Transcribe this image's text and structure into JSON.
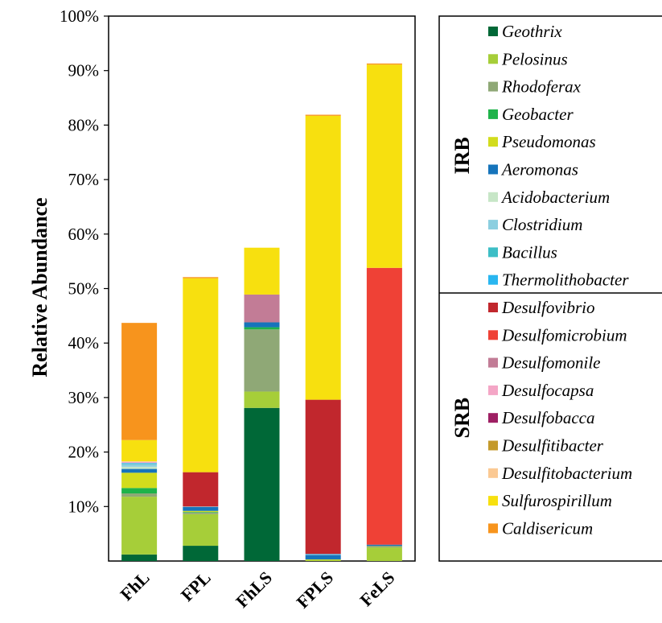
{
  "chart_data": {
    "type": "bar",
    "stacked": true,
    "ylabel": "Relative Abundance",
    "xlabel": "",
    "ylim": [
      0,
      100
    ],
    "yticks": [
      "10%",
      "20%",
      "30%",
      "40%",
      "50%",
      "60%",
      "70%",
      "80%",
      "90%",
      "100%"
    ],
    "categories": [
      "FhL",
      "FPL",
      "FhLS",
      "FPLS",
      "FeLS"
    ],
    "legend_position": "right",
    "legend_groups": [
      {
        "label": "IRB",
        "series": [
          "Geothrix",
          "Pelosinus",
          "Rhodoferax",
          "Geobacter",
          "Pseudomonas",
          "Aeromonas",
          "Acidobacterium",
          "Clostridium",
          "Bacillus",
          "Thermolithobacter"
        ]
      },
      {
        "label": "SRB",
        "series": [
          "Desulfovibrio",
          "Desulfomicrobium",
          "Desulfomonile",
          "Desulfocapsa",
          "Desulfobacca",
          "Desulfitibacter",
          "Desulfitobacterium",
          "Sulfurospirillum",
          "Caldisericum"
        ]
      }
    ],
    "series": [
      {
        "name": "Geothrix",
        "color": "#006837",
        "values": [
          1.2,
          2.8,
          28.1,
          0,
          0
        ]
      },
      {
        "name": "Pelosinus",
        "color": "#a6ce39",
        "values": [
          10.6,
          5.8,
          3.0,
          0.2,
          2.5
        ]
      },
      {
        "name": "Rhodoferax",
        "color": "#8fa876",
        "values": [
          0.6,
          0.3,
          11.4,
          0,
          0.3
        ]
      },
      {
        "name": "Geobacter",
        "color": "#1fb34a",
        "values": [
          1.0,
          0.1,
          0.4,
          0,
          0
        ]
      },
      {
        "name": "Pseudomonas",
        "color": "#d2dc1d",
        "values": [
          2.8,
          0.2,
          0,
          0.1,
          0
        ]
      },
      {
        "name": "Aeromonas",
        "color": "#1674bb",
        "values": [
          0.7,
          0.7,
          0.9,
          0.8,
          0.2
        ]
      },
      {
        "name": "Acidobacterium",
        "color": "#c7e6c7",
        "values": [
          0.4,
          0,
          0,
          0,
          0
        ]
      },
      {
        "name": "Clostridium",
        "color": "#8ccfe0",
        "values": [
          0.5,
          0.1,
          0,
          0.1,
          0
        ]
      },
      {
        "name": "Bacillus",
        "color": "#3cbec6",
        "values": [
          0.1,
          0,
          0,
          0,
          0
        ]
      },
      {
        "name": "Thermolithobacter",
        "color": "#29b6f0",
        "values": [
          0.1,
          0,
          0,
          0.1,
          0
        ]
      },
      {
        "name": "Desulfovibrio",
        "color": "#c1272d",
        "values": [
          0,
          6.3,
          0,
          28.3,
          0
        ]
      },
      {
        "name": "Desulfomicrobium",
        "color": "#ef4136",
        "values": [
          0,
          0,
          0,
          0,
          50.8
        ]
      },
      {
        "name": "Desulfomonile",
        "color": "#c27c96",
        "values": [
          0,
          0,
          5.1,
          0,
          0
        ]
      },
      {
        "name": "Desulfocapsa",
        "color": "#f4a6c6",
        "values": [
          0.2,
          0,
          0,
          0,
          0
        ]
      },
      {
        "name": "Desulfobacca",
        "color": "#9e1f63",
        "values": [
          0,
          0,
          0,
          0,
          0
        ]
      },
      {
        "name": "Desulfitibacter",
        "color": "#c49a2c",
        "values": [
          0,
          0,
          0,
          0,
          0
        ]
      },
      {
        "name": "Desulfitobacterium",
        "color": "#fbc993",
        "values": [
          0.1,
          0,
          0,
          0,
          0
        ]
      },
      {
        "name": "Sulfurospirillum",
        "color": "#f7e00f",
        "values": [
          3.9,
          35.6,
          8.6,
          52.1,
          37.3
        ]
      },
      {
        "name": "Caldisericum",
        "color": "#f7941d",
        "values": [
          21.5,
          0.2,
          0,
          0.2,
          0.2
        ]
      }
    ]
  }
}
